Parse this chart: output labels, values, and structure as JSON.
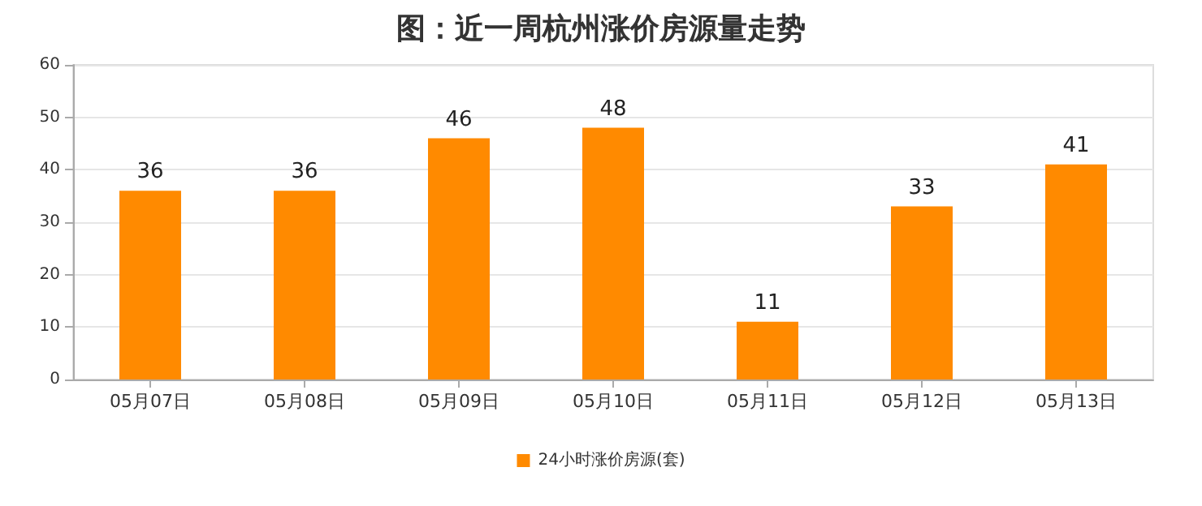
{
  "chart_data": {
    "type": "bar",
    "title": "图：近一周杭州涨价房源量走势",
    "categories": [
      "05月07日",
      "05月08日",
      "05月09日",
      "05月10日",
      "05月11日",
      "05月12日",
      "05月13日"
    ],
    "series": [
      {
        "name": "24小时涨价房源(套)",
        "color": "#ff8a00",
        "values": [
          36,
          36,
          46,
          48,
          11,
          33,
          41
        ]
      }
    ],
    "ylim": [
      0,
      60
    ],
    "yticks": [
      0,
      10,
      20,
      30,
      40,
      50,
      60
    ],
    "grid": "y",
    "legend": "bottom",
    "data_labels": true
  }
}
